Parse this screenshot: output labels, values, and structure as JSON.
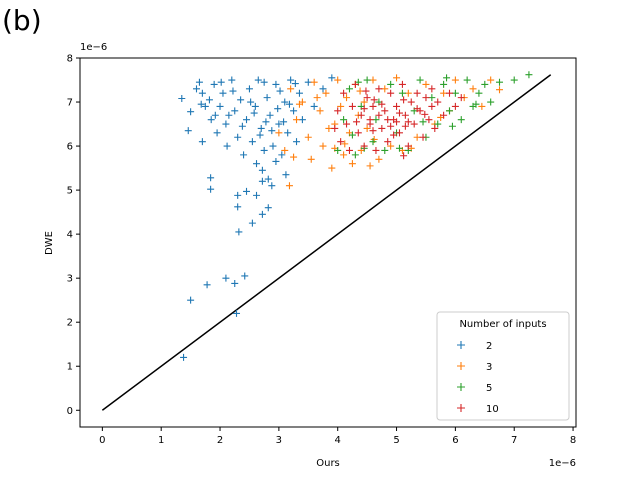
{
  "panel_label": "(b)",
  "chart_data": {
    "type": "scatter",
    "title": "",
    "xlabel": "Ours",
    "ylabel": "DWE",
    "x_offset_text": "1e−6",
    "y_offset_text": "1e−6",
    "xlim": [
      -0.38,
      8.05
    ],
    "ylim": [
      -0.38,
      8.0
    ],
    "x_ticks": [
      "0",
      "1",
      "2",
      "3",
      "4",
      "5",
      "6",
      "7",
      "8"
    ],
    "y_ticks": [
      "0",
      "1",
      "2",
      "3",
      "4",
      "5",
      "6",
      "7",
      "8"
    ],
    "marker": "+",
    "grid": false,
    "legend": {
      "title": "Number of inputs",
      "position": "lower-right"
    },
    "reference_line": {
      "x": [
        0,
        7.62
      ],
      "y": [
        0,
        7.62
      ],
      "color": "#000000"
    },
    "series": [
      {
        "name": "2",
        "color": "#1f77b4",
        "points": [
          [
            1.38,
            1.2
          ],
          [
            1.5,
            2.5
          ],
          [
            1.78,
            2.85
          ],
          [
            2.1,
            3.0
          ],
          [
            2.25,
            2.88
          ],
          [
            2.42,
            3.05
          ],
          [
            2.28,
            2.2
          ],
          [
            2.32,
            4.05
          ],
          [
            2.55,
            4.25
          ],
          [
            2.72,
            4.45
          ],
          [
            2.82,
            4.6
          ],
          [
            2.3,
            4.62
          ],
          [
            2.3,
            4.88
          ],
          [
            2.45,
            4.97
          ],
          [
            2.62,
            4.88
          ],
          [
            1.84,
            5.02
          ],
          [
            1.84,
            5.28
          ],
          [
            2.72,
            5.2
          ],
          [
            2.88,
            5.1
          ],
          [
            1.35,
            7.08
          ],
          [
            1.46,
            6.35
          ],
          [
            1.5,
            6.78
          ],
          [
            1.6,
            7.3
          ],
          [
            1.65,
            7.45
          ],
          [
            1.7,
            7.2
          ],
          [
            1.7,
            6.1
          ],
          [
            1.75,
            6.9
          ],
          [
            1.82,
            7.05
          ],
          [
            1.85,
            6.6
          ],
          [
            1.9,
            7.4
          ],
          [
            1.95,
            6.3
          ],
          [
            2.0,
            6.9
          ],
          [
            2.05,
            7.2
          ],
          [
            2.1,
            6.5
          ],
          [
            2.12,
            6.0
          ],
          [
            2.2,
            7.5
          ],
          [
            2.25,
            6.8
          ],
          [
            2.3,
            6.2
          ],
          [
            2.35,
            7.05
          ],
          [
            2.4,
            5.8
          ],
          [
            2.45,
            6.6
          ],
          [
            2.5,
            7.3
          ],
          [
            2.55,
            6.1
          ],
          [
            2.6,
            6.9
          ],
          [
            2.62,
            5.6
          ],
          [
            2.65,
            7.5
          ],
          [
            2.7,
            6.4
          ],
          [
            2.75,
            5.9
          ],
          [
            2.8,
            7.1
          ],
          [
            2.85,
            6.7
          ],
          [
            2.9,
            6.0
          ],
          [
            2.95,
            7.4
          ],
          [
            3.0,
            6.5
          ],
          [
            3.05,
            5.8
          ],
          [
            3.1,
            7.0
          ],
          [
            3.15,
            6.3
          ],
          [
            3.2,
            7.5
          ],
          [
            3.25,
            6.8
          ],
          [
            3.3,
            6.1
          ],
          [
            3.35,
            7.2
          ],
          [
            3.4,
            6.6
          ],
          [
            3.5,
            7.45
          ],
          [
            3.6,
            6.9
          ],
          [
            3.75,
            7.3
          ],
          [
            3.9,
            7.55
          ],
          [
            2.15,
            6.7
          ],
          [
            2.38,
            6.45
          ],
          [
            2.58,
            6.75
          ],
          [
            2.68,
            6.25
          ],
          [
            2.78,
            6.55
          ],
          [
            2.88,
            6.35
          ],
          [
            2.98,
            6.85
          ],
          [
            3.08,
            6.55
          ],
          [
            3.18,
            6.95
          ],
          [
            2.52,
            7.0
          ],
          [
            2.75,
            7.45
          ],
          [
            3.02,
            7.25
          ],
          [
            3.28,
            7.42
          ],
          [
            1.68,
            6.95
          ],
          [
            1.92,
            6.7
          ],
          [
            2.02,
            7.45
          ],
          [
            2.22,
            7.25
          ],
          [
            2.72,
            5.45
          ],
          [
            2.82,
            5.25
          ],
          [
            2.95,
            5.65
          ],
          [
            3.12,
            5.35
          ]
        ]
      },
      {
        "name": "3",
        "color": "#ff7f0e",
        "points": [
          [
            3.0,
            6.3
          ],
          [
            3.1,
            5.9
          ],
          [
            3.18,
            5.1
          ],
          [
            3.2,
            7.3
          ],
          [
            3.3,
            6.6
          ],
          [
            3.4,
            7.0
          ],
          [
            3.5,
            6.2
          ],
          [
            3.55,
            5.7
          ],
          [
            3.6,
            7.45
          ],
          [
            3.7,
            6.8
          ],
          [
            3.75,
            6.0
          ],
          [
            3.8,
            7.2
          ],
          [
            3.9,
            5.5
          ],
          [
            3.95,
            6.5
          ],
          [
            4.0,
            7.5
          ],
          [
            4.05,
            6.9
          ],
          [
            4.1,
            5.8
          ],
          [
            4.15,
            7.1
          ],
          [
            4.2,
            6.3
          ],
          [
            4.25,
            5.6
          ],
          [
            4.3,
            7.4
          ],
          [
            4.35,
            6.7
          ],
          [
            4.4,
            5.9
          ],
          [
            4.45,
            7.0
          ],
          [
            4.5,
            6.4
          ],
          [
            4.6,
            7.5
          ],
          [
            4.7,
            5.7
          ],
          [
            4.8,
            7.3
          ],
          [
            4.9,
            6.0
          ],
          [
            5.0,
            7.55
          ],
          [
            5.1,
            5.9
          ],
          [
            5.2,
            7.2
          ],
          [
            5.35,
            6.2
          ],
          [
            5.5,
            7.4
          ],
          [
            5.65,
            6.5
          ],
          [
            5.8,
            7.2
          ],
          [
            5.9,
            6.8
          ],
          [
            6.0,
            7.5
          ],
          [
            6.15,
            7.1
          ],
          [
            6.3,
            7.3
          ],
          [
            6.45,
            6.9
          ],
          [
            6.6,
            7.5
          ],
          [
            6.75,
            7.28
          ],
          [
            3.65,
            7.1
          ],
          [
            3.85,
            6.4
          ],
          [
            4.12,
            6.05
          ],
          [
            4.38,
            7.25
          ],
          [
            4.62,
            6.15
          ],
          [
            5.25,
            5.95
          ],
          [
            5.75,
            6.65
          ],
          [
            3.35,
            6.95
          ],
          [
            3.25,
            5.75
          ],
          [
            3.95,
            5.95
          ],
          [
            4.55,
            5.55
          ]
        ]
      },
      {
        "name": "5",
        "color": "#2ca02c",
        "points": [
          [
            4.0,
            5.9
          ],
          [
            4.1,
            6.6
          ],
          [
            4.2,
            7.3
          ],
          [
            4.3,
            5.8
          ],
          [
            4.4,
            6.9
          ],
          [
            4.5,
            7.5
          ],
          [
            4.6,
            6.1
          ],
          [
            4.7,
            7.0
          ],
          [
            4.8,
            5.9
          ],
          [
            4.9,
            7.4
          ],
          [
            5.0,
            6.3
          ],
          [
            5.1,
            7.2
          ],
          [
            5.2,
            5.9
          ],
          [
            5.3,
            6.8
          ],
          [
            5.4,
            7.5
          ],
          [
            5.5,
            6.2
          ],
          [
            5.6,
            7.1
          ],
          [
            5.7,
            6.5
          ],
          [
            5.8,
            7.4
          ],
          [
            5.9,
            6.8
          ],
          [
            6.0,
            7.2
          ],
          [
            6.1,
            6.6
          ],
          [
            6.2,
            7.5
          ],
          [
            6.3,
            6.9
          ],
          [
            6.4,
            7.2
          ],
          [
            6.5,
            7.4
          ],
          [
            6.6,
            7.0
          ],
          [
            6.75,
            7.45
          ],
          [
            7.0,
            7.5
          ],
          [
            7.25,
            7.62
          ],
          [
            4.25,
            6.25
          ],
          [
            4.45,
            5.95
          ],
          [
            4.65,
            6.6
          ],
          [
            5.05,
            5.95
          ],
          [
            5.45,
            6.55
          ],
          [
            5.95,
            6.45
          ],
          [
            6.35,
            6.95
          ],
          [
            4.35,
            7.45
          ],
          [
            5.85,
            7.55
          ]
        ]
      },
      {
        "name": "10",
        "color": "#d62728",
        "points": [
          [
            3.95,
            6.4
          ],
          [
            4.0,
            6.8
          ],
          [
            4.05,
            6.1
          ],
          [
            4.1,
            7.2
          ],
          [
            4.15,
            6.5
          ],
          [
            4.2,
            5.9
          ],
          [
            4.25,
            6.9
          ],
          [
            4.3,
            7.4
          ],
          [
            4.35,
            6.3
          ],
          [
            4.4,
            6.7
          ],
          [
            4.45,
            6.0
          ],
          [
            4.5,
            7.1
          ],
          [
            4.55,
            6.5
          ],
          [
            4.6,
            6.9
          ],
          [
            4.65,
            5.9
          ],
          [
            4.7,
            7.3
          ],
          [
            4.75,
            6.4
          ],
          [
            4.8,
            6.8
          ],
          [
            4.85,
            6.1
          ],
          [
            4.9,
            7.2
          ],
          [
            4.95,
            6.6
          ],
          [
            5.0,
            6.9
          ],
          [
            5.05,
            6.3
          ],
          [
            5.1,
            7.4
          ],
          [
            5.15,
            6.7
          ],
          [
            5.2,
            6.0
          ],
          [
            5.25,
            7.0
          ],
          [
            5.3,
            6.5
          ],
          [
            5.35,
            7.2
          ],
          [
            5.4,
            6.8
          ],
          [
            5.45,
            6.2
          ],
          [
            5.5,
            7.1
          ],
          [
            5.55,
            6.6
          ],
          [
            5.6,
            6.9
          ],
          [
            5.65,
            6.4
          ],
          [
            5.7,
            7.0
          ],
          [
            5.8,
            6.7
          ],
          [
            5.9,
            7.2
          ],
          [
            6.0,
            6.9
          ],
          [
            6.1,
            7.1
          ],
          [
            4.45,
            6.85
          ],
          [
            4.6,
            6.35
          ],
          [
            4.75,
            6.95
          ],
          [
            4.9,
            6.45
          ],
          [
            5.05,
            6.75
          ],
          [
            5.2,
            6.55
          ],
          [
            5.35,
            6.85
          ],
          [
            4.55,
            6.6
          ],
          [
            4.85,
            6.6
          ],
          [
            5.15,
            6.45
          ],
          [
            4.7,
            6.7
          ],
          [
            5.0,
            6.55
          ],
          [
            4.62,
            7.05
          ],
          [
            5.12,
            7.05
          ],
          [
            4.32,
            6.55
          ],
          [
            5.48,
            6.72
          ],
          [
            5.12,
            5.78
          ],
          [
            4.95,
            6.25
          ],
          [
            4.48,
            7.25
          ],
          [
            5.6,
            7.3
          ]
        ]
      }
    ]
  }
}
